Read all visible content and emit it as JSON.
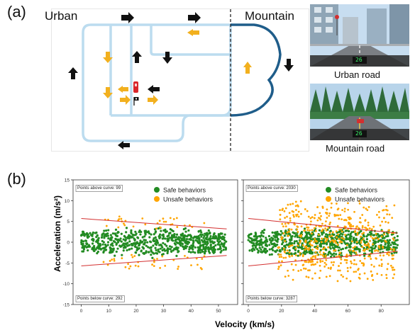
{
  "panel_a": {
    "label": "(a)",
    "regions": {
      "left": "Urban",
      "right": "Mountain"
    },
    "captions": {
      "urban": "Urban road",
      "mountain": "Mountain road"
    },
    "map_colors": {
      "road": "#bcdcef",
      "mountain_road": "#1f5d8a",
      "arrow_black": "#111111",
      "arrow_yellow": "#f2b01e",
      "car": "#d9262b"
    },
    "hud": {
      "urban": "26",
      "mountain": "26"
    }
  },
  "panel_b": {
    "label": "(b)",
    "y_axis_label": "Acceleration (m/s²)",
    "x_axis_label": "Velocity (km/s)",
    "legend": {
      "safe": "Safe behaviors",
      "unsafe": "Unsafe behaviors"
    },
    "colors": {
      "safe": "#228b22",
      "unsafe": "#ffa500",
      "boundary": "#d32f2f"
    }
  },
  "chart_data": [
    {
      "type": "scatter",
      "xlim": [
        -3,
        57
      ],
      "ylim": [
        -15,
        15
      ],
      "x_ticks": [
        "0",
        "10",
        "20",
        "30",
        "40",
        "50"
      ],
      "y_ticks": [
        "15",
        "10",
        "5",
        "0",
        "-5",
        "-10",
        "-15"
      ],
      "annotation_top": "Points above curve: 99",
      "annotation_bottom": "Points below curve: 292",
      "legend_position": "top-center",
      "grid": false,
      "safe_x_range": [
        0,
        53
      ],
      "safe_y_range": [
        -4,
        4
      ],
      "unsafe_x_range": [
        8,
        45
      ],
      "boundary_upper": [
        [
          0,
          5.7
        ],
        [
          53,
          3.2
        ]
      ],
      "boundary_lower": [
        [
          0,
          -5.7
        ],
        [
          53,
          -3.2
        ]
      ]
    },
    {
      "type": "scatter",
      "xlim": [
        -3,
        97
      ],
      "ylim": [
        -15,
        15
      ],
      "x_ticks": [
        "0",
        "20",
        "40",
        "60",
        "80"
      ],
      "y_ticks": [
        "15",
        "10",
        "5",
        "0",
        "-5",
        "-10",
        "-15"
      ],
      "annotation_top": "Points above curve: 2030",
      "annotation_bottom": "Points below curve: 3287",
      "legend_position": "top-right",
      "grid": false,
      "safe_x_range": [
        0,
        90
      ],
      "safe_y_range": [
        -4,
        4
      ],
      "unsafe_x_range": [
        18,
        88
      ],
      "boundary_upper": [
        [
          0,
          5.7
        ],
        [
          90,
          2.2
        ]
      ],
      "boundary_lower": [
        [
          0,
          -5.7
        ],
        [
          90,
          -2.2
        ]
      ]
    }
  ]
}
